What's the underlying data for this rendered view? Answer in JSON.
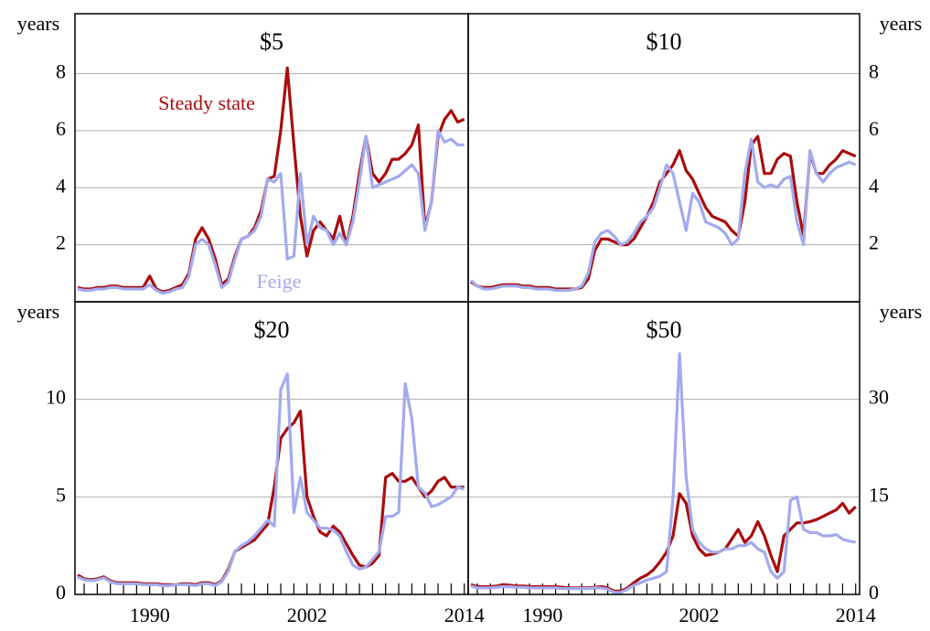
{
  "chart_data": [
    {
      "type": "line",
      "title": "$5",
      "ylabel": "years",
      "yaxis_side": "left",
      "grid": true,
      "annotations": [
        "Steady state",
        "Feige"
      ],
      "xlim": [
        1984.3,
        2014.3
      ],
      "ylim": [
        0,
        10.1
      ],
      "yticks": [
        2,
        4,
        6,
        8
      ],
      "x": [
        1984.5,
        1985,
        1985.5,
        1986,
        1986.5,
        1987,
        1987.5,
        1988,
        1988.5,
        1989,
        1989.5,
        1990,
        1990.5,
        1991,
        1991.5,
        1992,
        1992.5,
        1993,
        1993.5,
        1994,
        1994.5,
        1995,
        1995.5,
        1996,
        1996.5,
        1997,
        1997.5,
        1998,
        1998.5,
        1999,
        1999.5,
        2000,
        2000.5,
        2001,
        2001.5,
        2002,
        2002.5,
        2003,
        2003.5,
        2004,
        2004.5,
        2005,
        2005.5,
        2006,
        2006.5,
        2007,
        2007.5,
        2008,
        2008.5,
        2009,
        2009.5,
        2010,
        2010.5,
        2011,
        2011.5,
        2012,
        2012.5,
        2013,
        2013.5,
        2014
      ],
      "series": [
        {
          "name": "Steady state",
          "color": "#a80d0d",
          "values": [
            0.5,
            0.45,
            0.45,
            0.5,
            0.5,
            0.55,
            0.55,
            0.5,
            0.5,
            0.5,
            0.5,
            0.9,
            0.45,
            0.35,
            0.4,
            0.5,
            0.6,
            1.0,
            2.2,
            2.6,
            2.2,
            1.5,
            0.6,
            0.8,
            1.6,
            2.2,
            2.3,
            2.6,
            3.2,
            4.3,
            4.4,
            6.0,
            8.2,
            5.5,
            3.0,
            1.6,
            2.5,
            2.8,
            2.5,
            2.2,
            3.0,
            2.0,
            3.0,
            4.5,
            5.8,
            4.5,
            4.2,
            4.5,
            5.0,
            5.0,
            5.2,
            5.5,
            6.2,
            2.6,
            3.5,
            5.8,
            6.4,
            6.7,
            6.3,
            6.4
          ]
        },
        {
          "name": "Feige",
          "color": "#a3aaee",
          "values": [
            0.45,
            0.4,
            0.4,
            0.45,
            0.45,
            0.5,
            0.5,
            0.45,
            0.45,
            0.45,
            0.45,
            0.6,
            0.4,
            0.3,
            0.35,
            0.45,
            0.5,
            0.9,
            2.0,
            2.2,
            2.0,
            1.3,
            0.5,
            0.7,
            1.5,
            2.2,
            2.3,
            2.5,
            3.0,
            4.3,
            4.2,
            4.5,
            1.5,
            1.6,
            4.5,
            2.0,
            3.0,
            2.6,
            2.5,
            2.0,
            2.4,
            2.0,
            2.8,
            4.2,
            5.8,
            4.0,
            4.1,
            4.2,
            4.3,
            4.4,
            4.6,
            4.8,
            4.5,
            2.5,
            3.5,
            6.0,
            5.6,
            5.7,
            5.5,
            5.5
          ]
        }
      ]
    },
    {
      "type": "line",
      "title": "$10",
      "ylabel": "years",
      "yaxis_side": "right",
      "grid": true,
      "xlim": [
        1984.3,
        2014.3
      ],
      "ylim": [
        0,
        10.1
      ],
      "yticks": [
        2,
        4,
        6,
        8
      ],
      "x": [
        1984.5,
        1985,
        1985.5,
        1986,
        1986.5,
        1987,
        1987.5,
        1988,
        1988.5,
        1989,
        1989.5,
        1990,
        1990.5,
        1991,
        1991.5,
        1992,
        1992.5,
        1993,
        1993.5,
        1994,
        1994.5,
        1995,
        1995.5,
        1996,
        1996.5,
        1997,
        1997.5,
        1998,
        1998.5,
        1999,
        1999.5,
        2000,
        2000.5,
        2001,
        2001.5,
        2002,
        2002.5,
        2003,
        2003.5,
        2004,
        2004.5,
        2005,
        2005.5,
        2006,
        2006.5,
        2007,
        2007.5,
        2008,
        2008.5,
        2009,
        2009.5,
        2010,
        2010.5,
        2011,
        2011.5,
        2012,
        2012.5,
        2013,
        2013.5,
        2014
      ],
      "series": [
        {
          "name": "Steady state",
          "color": "#a80d0d",
          "values": [
            0.7,
            0.55,
            0.5,
            0.5,
            0.55,
            0.6,
            0.6,
            0.6,
            0.55,
            0.55,
            0.5,
            0.5,
            0.5,
            0.45,
            0.45,
            0.45,
            0.45,
            0.5,
            0.8,
            1.8,
            2.2,
            2.2,
            2.1,
            2.0,
            2.0,
            2.2,
            2.6,
            3.0,
            3.5,
            4.2,
            4.5,
            4.8,
            5.3,
            4.6,
            4.3,
            3.8,
            3.3,
            3.0,
            2.9,
            2.8,
            2.5,
            2.3,
            3.5,
            5.5,
            5.8,
            4.5,
            4.5,
            5.0,
            5.2,
            5.1,
            3.5,
            2.3,
            5.2,
            4.5,
            4.5,
            4.8,
            5.0,
            5.3,
            5.2,
            5.1
          ]
        },
        {
          "name": "Feige",
          "color": "#a3aaee",
          "values": [
            0.75,
            0.55,
            0.45,
            0.45,
            0.5,
            0.55,
            0.55,
            0.55,
            0.5,
            0.5,
            0.45,
            0.45,
            0.45,
            0.4,
            0.4,
            0.4,
            0.45,
            0.55,
            1.0,
            2.1,
            2.4,
            2.5,
            2.3,
            2.0,
            2.1,
            2.4,
            2.8,
            3.0,
            3.3,
            4.0,
            4.8,
            4.5,
            3.5,
            2.5,
            3.8,
            3.5,
            2.8,
            2.7,
            2.6,
            2.4,
            2.0,
            2.2,
            4.5,
            5.7,
            4.2,
            4.0,
            4.1,
            4.0,
            4.3,
            4.4,
            2.8,
            2.0,
            5.3,
            4.5,
            4.2,
            4.5,
            4.7,
            4.8,
            4.9,
            4.8
          ]
        }
      ]
    },
    {
      "type": "line",
      "title": "$20",
      "ylabel": "years",
      "yaxis_side": "left",
      "grid": true,
      "xlim": [
        1984.3,
        2014.3
      ],
      "ylim": [
        0,
        15
      ],
      "yticks": [
        0,
        5,
        10
      ],
      "xticks": [
        1990,
        2002,
        2014
      ],
      "xminorticks": [
        1985,
        1986,
        1987,
        1988,
        1989,
        1990,
        1991,
        1992,
        1993,
        1994,
        1995,
        1996,
        1997,
        1998,
        1999,
        2000,
        2001,
        2002,
        2003,
        2004,
        2005,
        2006,
        2007,
        2008,
        2009,
        2010,
        2011,
        2012,
        2013,
        2014
      ],
      "x": [
        1984.5,
        1985,
        1985.5,
        1986,
        1986.5,
        1987,
        1987.5,
        1988,
        1988.5,
        1989,
        1989.5,
        1990,
        1990.5,
        1991,
        1991.5,
        1992,
        1992.5,
        1993,
        1993.5,
        1994,
        1994.5,
        1995,
        1995.5,
        1996,
        1996.5,
        1997,
        1997.5,
        1998,
        1998.5,
        1999,
        1999.5,
        2000,
        2000.5,
        2001,
        2001.5,
        2002,
        2002.5,
        2003,
        2003.5,
        2004,
        2004.5,
        2005,
        2005.5,
        2006,
        2006.5,
        2007,
        2007.5,
        2008,
        2008.5,
        2009,
        2009.5,
        2010,
        2010.5,
        2011,
        2011.5,
        2012,
        2012.5,
        2013,
        2013.5,
        2014
      ],
      "series": [
        {
          "name": "Steady state",
          "color": "#a80d0d",
          "values": [
            1.0,
            0.8,
            0.75,
            0.8,
            0.9,
            0.7,
            0.6,
            0.6,
            0.6,
            0.6,
            0.55,
            0.55,
            0.55,
            0.5,
            0.5,
            0.5,
            0.55,
            0.55,
            0.5,
            0.6,
            0.6,
            0.5,
            0.7,
            1.3,
            2.2,
            2.4,
            2.6,
            2.8,
            3.2,
            3.6,
            5.5,
            8.0,
            8.5,
            8.8,
            9.4,
            5.0,
            4.0,
            3.2,
            3.0,
            3.5,
            3.2,
            2.6,
            2.0,
            1.5,
            1.4,
            1.6,
            2.0,
            6.0,
            6.2,
            5.8,
            5.8,
            6.0,
            5.5,
            5.0,
            5.3,
            5.8,
            6.0,
            5.5,
            5.5,
            5.5
          ]
        },
        {
          "name": "Feige",
          "color": "#a3aaee",
          "values": [
            0.9,
            0.75,
            0.7,
            0.75,
            0.85,
            0.65,
            0.55,
            0.55,
            0.55,
            0.55,
            0.5,
            0.5,
            0.5,
            0.45,
            0.45,
            0.5,
            0.5,
            0.5,
            0.45,
            0.55,
            0.55,
            0.45,
            0.65,
            1.2,
            2.2,
            2.5,
            2.7,
            3.0,
            3.4,
            3.8,
            3.5,
            10.5,
            11.3,
            4.2,
            6.0,
            4.2,
            3.8,
            3.4,
            3.4,
            3.3,
            3.0,
            2.2,
            1.5,
            1.3,
            1.4,
            1.8,
            2.2,
            4.0,
            4.0,
            4.2,
            10.8,
            9.0,
            5.5,
            5.2,
            4.5,
            4.6,
            4.8,
            5.0,
            5.5,
            5.4
          ]
        }
      ]
    },
    {
      "type": "line",
      "title": "$50",
      "ylabel": "years",
      "yaxis_side": "right",
      "grid": true,
      "xlim": [
        1984.3,
        2014.3
      ],
      "ylim": [
        0,
        45
      ],
      "yticks": [
        0,
        15,
        30
      ],
      "xticks": [
        1990,
        2002,
        2014
      ],
      "xminorticks": [
        1985,
        1986,
        1987,
        1988,
        1989,
        1990,
        1991,
        1992,
        1993,
        1994,
        1995,
        1996,
        1997,
        1998,
        1999,
        2000,
        2001,
        2002,
        2003,
        2004,
        2005,
        2006,
        2007,
        2008,
        2009,
        2010,
        2011,
        2012,
        2013,
        2014
      ],
      "x": [
        1984.5,
        1985,
        1985.5,
        1986,
        1986.5,
        1987,
        1987.5,
        1988,
        1988.5,
        1989,
        1989.5,
        1990,
        1990.5,
        1991,
        1991.5,
        1992,
        1992.5,
        1993,
        1993.5,
        1994,
        1994.5,
        1995,
        1995.5,
        1996,
        1996.5,
        1997,
        1997.5,
        1998,
        1998.5,
        1999,
        1999.5,
        2000,
        2000.5,
        2001,
        2001.5,
        2002,
        2002.5,
        2003,
        2003.5,
        2004,
        2004.5,
        2005,
        2005.5,
        2006,
        2006.5,
        2007,
        2007.5,
        2008,
        2008.5,
        2009,
        2009.5,
        2010,
        2010.5,
        2011,
        2011.5,
        2012,
        2012.5,
        2013,
        2013.5,
        2014
      ],
      "series": [
        {
          "name": "Steady state",
          "color": "#a80d0d",
          "values": [
            1.5,
            1.2,
            1.2,
            1.2,
            1.3,
            1.5,
            1.4,
            1.3,
            1.3,
            1.2,
            1.2,
            1.2,
            1.2,
            1.2,
            1.1,
            1.0,
            1.0,
            1.0,
            1.0,
            1.1,
            1.2,
            1.0,
            0.5,
            0.5,
            1.0,
            1.8,
            2.5,
            3.0,
            3.8,
            5.0,
            6.5,
            9.0,
            15.5,
            14.0,
            9.0,
            7.0,
            6.0,
            6.2,
            6.5,
            7.0,
            8.5,
            10.0,
            8.0,
            9.0,
            11.2,
            9.0,
            6.0,
            3.5,
            9.0,
            10.0,
            11.0,
            11.0,
            11.2,
            11.5,
            12.0,
            12.5,
            13.0,
            14.0,
            12.5,
            13.5
          ]
        },
        {
          "name": "Feige",
          "color": "#a3aaee",
          "values": [
            1.3,
            1.0,
            1.0,
            1.0,
            1.1,
            1.2,
            1.2,
            1.1,
            1.1,
            1.0,
            1.0,
            1.0,
            1.0,
            1.0,
            0.9,
            0.9,
            0.9,
            0.9,
            0.9,
            1.0,
            1.0,
            0.8,
            0.3,
            0.3,
            0.8,
            1.4,
            1.8,
            2.2,
            2.5,
            2.8,
            3.5,
            15,
            37,
            18,
            10,
            8.0,
            7.0,
            6.5,
            6.5,
            7.0,
            7.0,
            7.5,
            7.5,
            8.0,
            7.0,
            6.5,
            3.5,
            2.5,
            3.5,
            14.5,
            15.0,
            10.0,
            9.5,
            9.5,
            9.0,
            9.0,
            9.2,
            8.5,
            8.2,
            8.0
          ]
        }
      ]
    }
  ]
}
